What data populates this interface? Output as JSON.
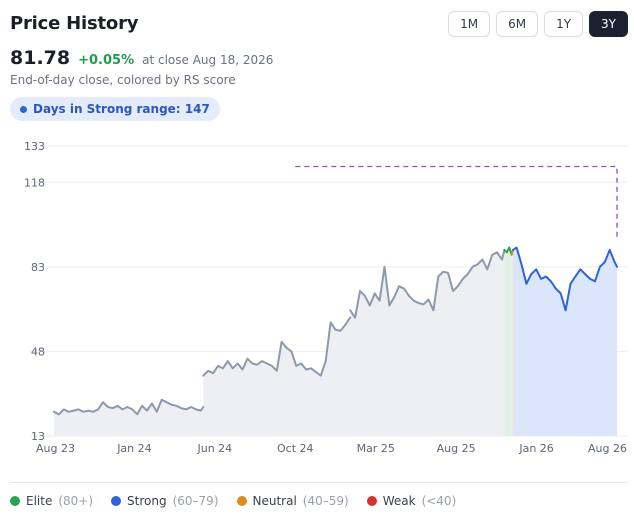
{
  "header": {
    "title": "Price History",
    "ranges": [
      "1M",
      "6M",
      "1Y",
      "3Y"
    ],
    "active_range": "3Y"
  },
  "quote": {
    "price": "81.78",
    "change": "+0.05%",
    "close_note": "at close Aug 18, 2026"
  },
  "subtitle": "End-of-day close, colored by RS score",
  "badge": {
    "text": "Days in Strong range: 147"
  },
  "colors": {
    "elite": "#2aa44f",
    "strong": "#2f63d8",
    "neutral": "#e08a1e",
    "weak": "#d93030",
    "neutral_line": "#8e99ad",
    "reference_line": "#8a4fd6"
  },
  "legend": [
    {
      "name": "Elite",
      "range": "(80+)",
      "color": "#2aa44f"
    },
    {
      "name": "Strong",
      "range": "(60–79)",
      "color": "#2f63d8"
    },
    {
      "name": "Neutral",
      "range": "(40–59)",
      "color": "#e08a1e"
    },
    {
      "name": "Weak",
      "range": "(<40)",
      "color": "#d93030"
    }
  ],
  "chart_data": {
    "type": "line",
    "ylim": [
      13,
      133
    ],
    "y_ticks": [
      133,
      118,
      83,
      48,
      13
    ],
    "x_ticks": [
      "Aug 23",
      "Jan 24",
      "Jun 24",
      "Oct 24",
      "Mar 25",
      "Aug 25",
      "Jan 26",
      "Aug 26"
    ],
    "grid": true,
    "reference_line": {
      "value": 124.5,
      "from_tick": "Oct 24",
      "to_tick": "Aug 26"
    },
    "series": [
      {
        "segments": [
          {
            "rating": "unrated",
            "x": [
              0,
              0.2,
              0.4,
              0.6,
              0.8,
              1,
              1.2,
              1.4,
              1.6,
              1.8,
              2,
              2.2,
              2.4,
              2.6,
              2.8,
              3,
              3.2,
              3.4,
              3.6,
              3.8,
              4,
              4.2,
              4.4,
              4.6,
              4.8,
              5,
              5.2,
              5.4,
              5.6,
              5.8,
              6,
              6.1
            ],
            "y": [
              23,
              22,
              24,
              23,
              23.5,
              24,
              23,
              23.5,
              23,
              24,
              27,
              25,
              24.5,
              25.5,
              24,
              25,
              24,
              22,
              25.5,
              23.5,
              26.5,
              23,
              28,
              27,
              26,
              25.5,
              24.5,
              24,
              25,
              24,
              23.5,
              25
            ]
          },
          {
            "rating": "unrated",
            "x": [
              6.1,
              6.3,
              6.5,
              6.7,
              6.9,
              7.1,
              7.3,
              7.5,
              7.7,
              7.9,
              8.1,
              8.3,
              8.5,
              8.7,
              8.9,
              9,
              9.1,
              9.3,
              9.5,
              9.7,
              9.9,
              10.1,
              10.3,
              10.5,
              10.7,
              10.9,
              11.1,
              11.3,
              11.5,
              11.7,
              11.9,
              12.1
            ],
            "y": [
              38,
              40,
              39,
              42,
              41,
              44,
              41,
              43,
              40.5,
              45,
              43,
              42.5,
              44,
              43,
              42,
              41,
              40,
              52,
              49.5,
              48,
              42,
              43,
              40.5,
              41,
              39.5,
              38,
              44,
              60,
              57,
              56.5,
              59,
              62
            ]
          },
          {
            "rating": "unrated",
            "x": [
              12.1,
              12.3,
              12.5,
              12.7,
              12.9,
              13.1,
              13.3,
              13.5,
              13.7,
              13.9,
              14.1,
              14.3,
              14.5,
              14.7,
              14.9,
              15.1,
              15.3,
              15.5,
              15.7,
              15.9,
              16.1,
              16.3,
              16.5,
              16.7,
              16.9,
              17.1,
              17.3,
              17.5,
              17.7,
              17.9,
              18.1,
              18.3,
              18.4
            ],
            "y": [
              65,
              62,
              73,
              71,
              67,
              72,
              69,
              83,
              67,
              70.5,
              75,
              74,
              71,
              69,
              68,
              67.5,
              69.5,
              65,
              79,
              81,
              80.5,
              73,
              75,
              78,
              80,
              83,
              84,
              86,
              82,
              88,
              89,
              86,
              90
            ]
          },
          {
            "rating": "elite",
            "x": [
              18.4,
              18.5,
              18.6,
              18.7
            ],
            "y": [
              90,
              89,
              91,
              88
            ]
          },
          {
            "rating": "neutral",
            "x": [
              18.7,
              18.75
            ],
            "y": [
              88,
              90
            ]
          },
          {
            "rating": "strong",
            "x": [
              18.75,
              18.9,
              19.1,
              19.3,
              19.5,
              19.7,
              19.9,
              20.1,
              20.3,
              20.5,
              20.7,
              20.9,
              21.1,
              21.3,
              21.5,
              21.7,
              21.9,
              22.1,
              22.3,
              22.5,
              22.7,
              22.9,
              23
            ],
            "y": [
              90,
              91,
              84,
              76,
              80,
              82,
              78,
              79,
              77,
              74,
              72,
              65,
              76,
              79,
              82,
              80,
              78,
              77,
              83,
              85,
              90,
              85,
              83
            ]
          }
        ]
      }
    ]
  }
}
